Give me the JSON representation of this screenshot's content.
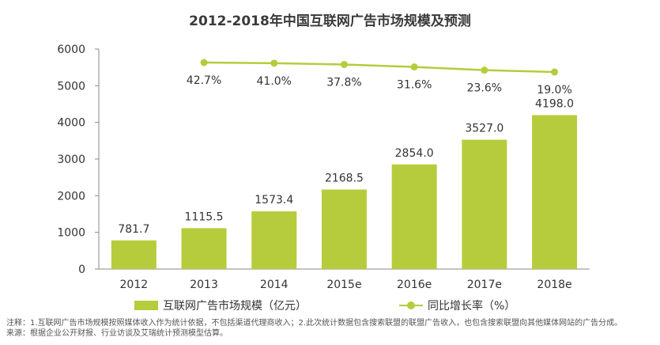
{
  "chart_data": {
    "type": "bar",
    "title": "2012-2018年中国互联网广告市场规模及预测",
    "categories": [
      "2012",
      "2013",
      "2014",
      "2015e",
      "2016e",
      "2017e",
      "2018e"
    ],
    "ylim": [
      0,
      6000
    ],
    "yticks": [
      "0",
      "1000",
      "2000",
      "3000",
      "4000",
      "5000",
      "6000"
    ],
    "grid": false,
    "series": [
      {
        "name": "互联网广告市场规模（亿元）",
        "type": "bar",
        "values": [
          781.7,
          1115.5,
          1573.4,
          2168.5,
          2854.0,
          3527.0,
          4198.0
        ],
        "labels": [
          "781.7",
          "1115.5",
          "1573.4",
          "2168.5",
          "2854.0",
          "3527.0",
          "4198.0"
        ]
      },
      {
        "name": "同比增长率（%）",
        "type": "line",
        "values": [
          null,
          42.7,
          41.0,
          37.8,
          31.6,
          23.6,
          19.0
        ],
        "labels": [
          "",
          "42.7%",
          "41.0%",
          "37.8%",
          "31.6%",
          "23.6%",
          "19.0%"
        ]
      }
    ],
    "legend": "bottom",
    "color": "#b6cc3c"
  },
  "notes": {
    "line1": "注释：1.互联网广告市场规模按照媒体收入作为统计依据，不包括渠道代理商收入；2.此次统计数据包含搜索联盟的联盟广告收入，也包含搜索联盟向其他媒体网站的广告分成。",
    "line2": "来源：根据企业公开财报、行业访谈及艾瑞统计预测模型估算。"
  }
}
